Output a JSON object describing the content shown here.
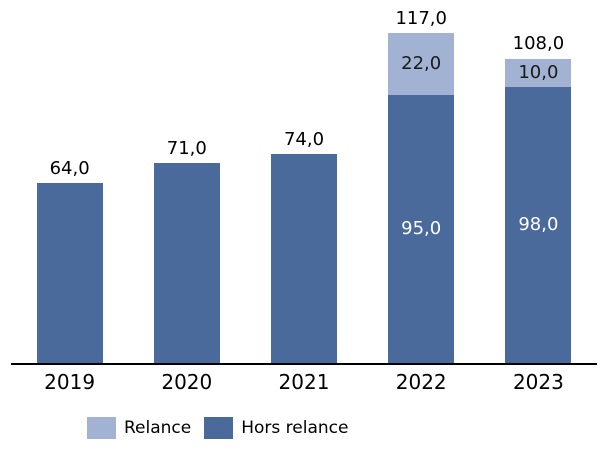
{
  "chart_data": {
    "type": "bar",
    "stacked": true,
    "title": "",
    "categories": [
      "2019",
      "2020",
      "2021",
      "2022",
      "2023"
    ],
    "series": [
      {
        "name": "Hors relance",
        "color": "#4a6a9c",
        "label_color": "#ffffff",
        "values": [
          64.0,
          71.0,
          74.0,
          95.0,
          98.0
        ],
        "segment_labels": [
          null,
          null,
          null,
          "95,0",
          "98,0"
        ]
      },
      {
        "name": "Relance",
        "color": "#a2b2d2",
        "label_color": "#1a1a1a",
        "values": [
          0,
          0,
          0,
          22.0,
          10.0
        ],
        "segment_labels": [
          null,
          null,
          null,
          "22,0",
          "10,0"
        ]
      }
    ],
    "total_labels": [
      "64,0",
      "71,0",
      "74,0",
      "117,0",
      "108,0"
    ],
    "totals": [
      64.0,
      71.0,
      74.0,
      117.0,
      108.0
    ],
    "ylim": [
      0,
      129
    ],
    "grid": false,
    "y_axis_visible": false,
    "x_axis_line_color": "#000000",
    "legend": {
      "position": "bottom-left",
      "items": [
        {
          "label": "Relance",
          "color": "#a2b2d2"
        },
        {
          "label": "Hors relance",
          "color": "#4a6a9c"
        }
      ]
    }
  }
}
